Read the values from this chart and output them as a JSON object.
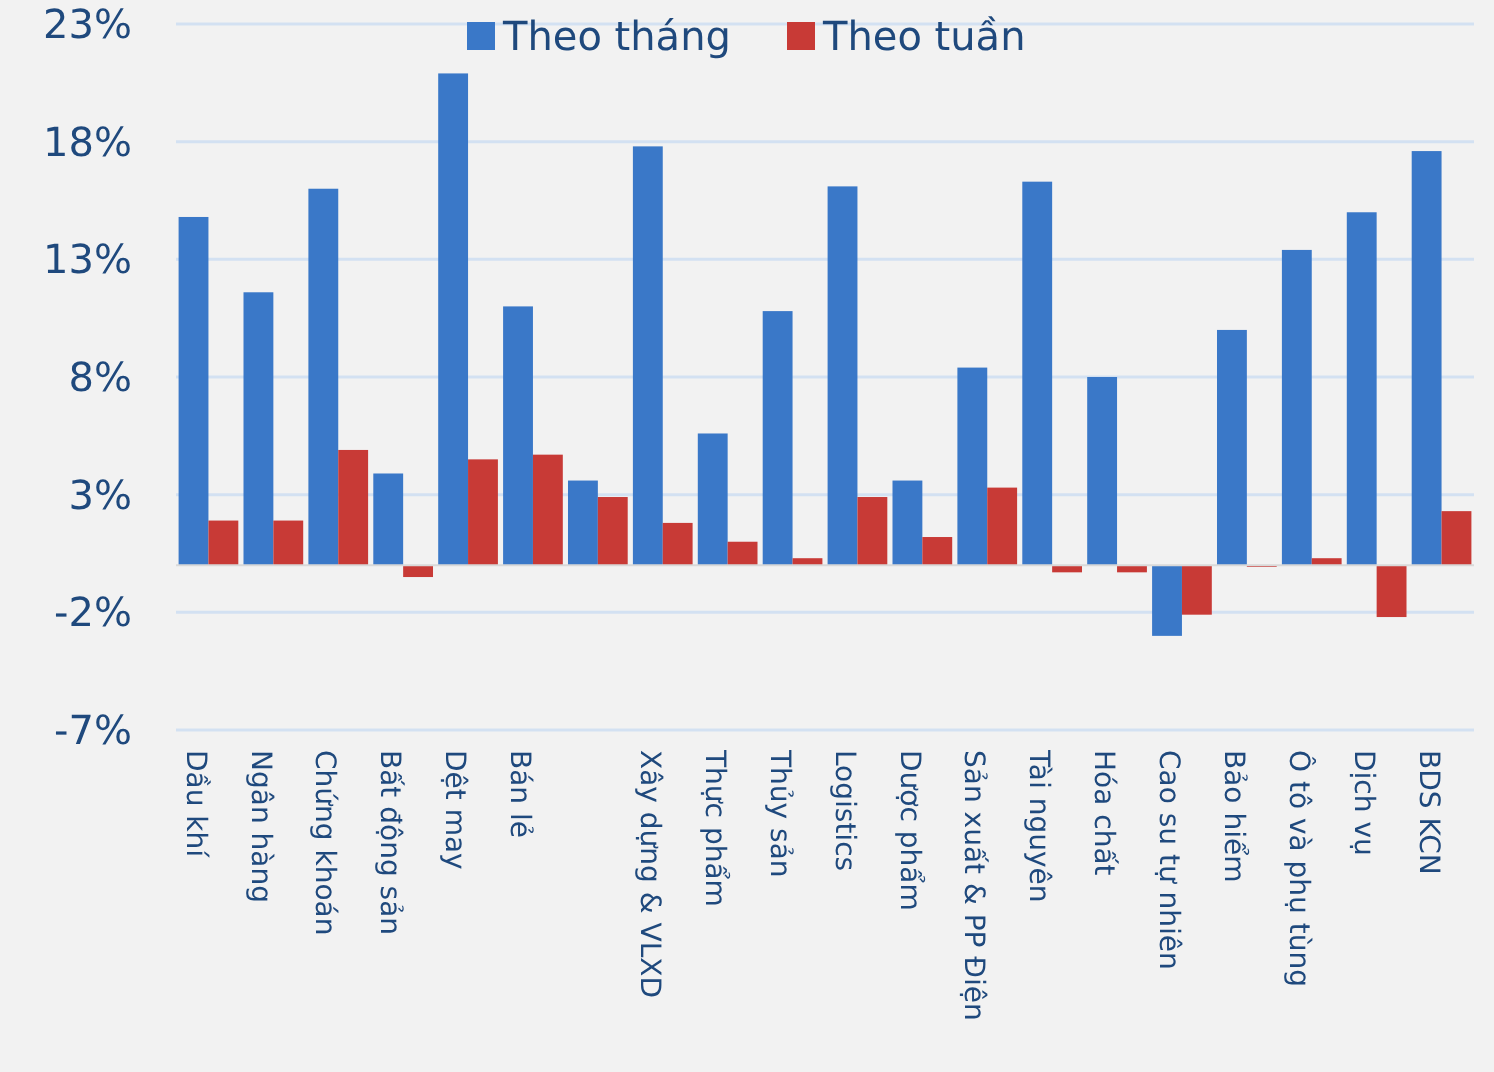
{
  "chart_data": {
    "type": "bar",
    "categories": [
      "Dầu khí",
      "Ngân hàng",
      "Chứng khoán",
      "Bất động sản",
      "Dệt may",
      "Bán lẻ",
      null,
      "Xây dựng & VLXD",
      "Thực phẩm",
      "Thủy sản",
      "Logistics",
      "Dược phẩm",
      "Sản xuất & PP Điện",
      "Tài nguyên",
      "Hóa chất",
      "Cao su tự nhiên",
      "Bảo hiểm",
      "Ô tô và phụ tùng",
      "Dịch vụ",
      "BDS KCN"
    ],
    "series": [
      {
        "name": "Theo tháng",
        "color": "#3a78c8",
        "values": [
          14.8,
          11.6,
          16.0,
          3.9,
          20.9,
          11.0,
          3.6,
          17.8,
          5.6,
          10.8,
          16.1,
          3.6,
          8.4,
          16.3,
          8.0,
          -3.0,
          10.0,
          13.4,
          15.0,
          17.6
        ]
      },
      {
        "name": "Theo tuần",
        "color": "#c83a36",
        "values": [
          1.9,
          1.9,
          4.9,
          -0.5,
          4.5,
          4.7,
          2.9,
          1.8,
          1.0,
          0.3,
          2.9,
          1.2,
          3.3,
          -0.3,
          -0.3,
          -2.1,
          0,
          0.3,
          -2.2,
          2.3
        ]
      }
    ],
    "ylim": [
      -7,
      23
    ],
    "yticks": [
      {
        "value": -7,
        "label": "-7%"
      },
      {
        "value": -2,
        "label": "-2%"
      },
      {
        "value": 3,
        "label": "3%"
      },
      {
        "value": 8,
        "label": "8%"
      },
      {
        "value": 13,
        "label": "13%"
      },
      {
        "value": 18,
        "label": "18%"
      },
      {
        "value": 23,
        "label": "23%"
      }
    ],
    "grid": "y",
    "legend": "top"
  }
}
